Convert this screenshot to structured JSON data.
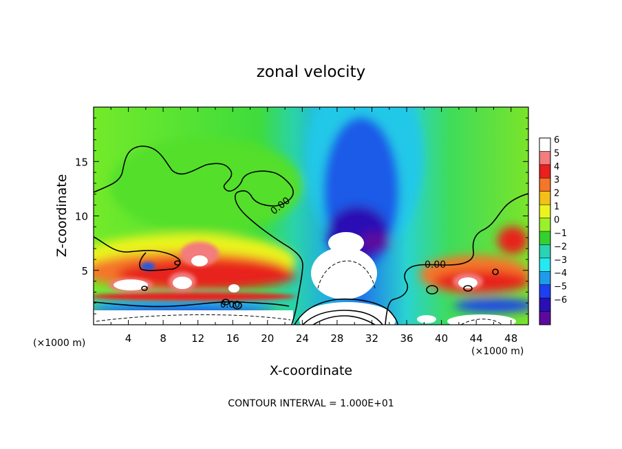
{
  "chart_data": {
    "type": "heatmap",
    "title": "zonal velocity",
    "xlabel": "X-coordinate",
    "ylabel": "Z-coordinate",
    "x_unit_note_left": "(×1000 m)",
    "x_unit_note_right": "(×1000 m)",
    "footer": "CONTOUR INTERVAL = 1.000E+01",
    "xlim": [
      0,
      50
    ],
    "ylim": [
      0,
      20
    ],
    "x_ticks": [
      4,
      8,
      12,
      16,
      20,
      24,
      28,
      32,
      36,
      40,
      44,
      48
    ],
    "x_tick_labels": [
      "4",
      "8",
      "12",
      "16",
      "20",
      "24",
      "28",
      "32",
      "36",
      "40",
      "44",
      "48"
    ],
    "y_ticks": [
      5,
      10,
      15
    ],
    "y_tick_labels": [
      "5",
      "10",
      "15"
    ],
    "colorbar": {
      "levels": [
        6,
        5,
        4,
        3,
        2,
        1,
        0,
        -1,
        -2,
        -3,
        -4,
        -5,
        -6
      ],
      "labels": [
        "6",
        "5",
        "4",
        "3",
        "2",
        "1",
        "0",
        "−1",
        "−2",
        "−3",
        "−4",
        "−5",
        "−6"
      ],
      "colors": [
        "#ffffff",
        "#f37c7c",
        "#e8201e",
        "#f4762a",
        "#f3c019",
        "#eaf41f",
        "#9af02a",
        "#33d130",
        "#2ad3b3",
        "#26e8f0",
        "#1f9ce8",
        "#1d3ff0",
        "#2a10b4",
        "#5c0a9e"
      ]
    },
    "contour_labels": [
      "0.00",
      "0.00",
      "0.00"
    ],
    "contour_levels": [
      0
    ]
  }
}
